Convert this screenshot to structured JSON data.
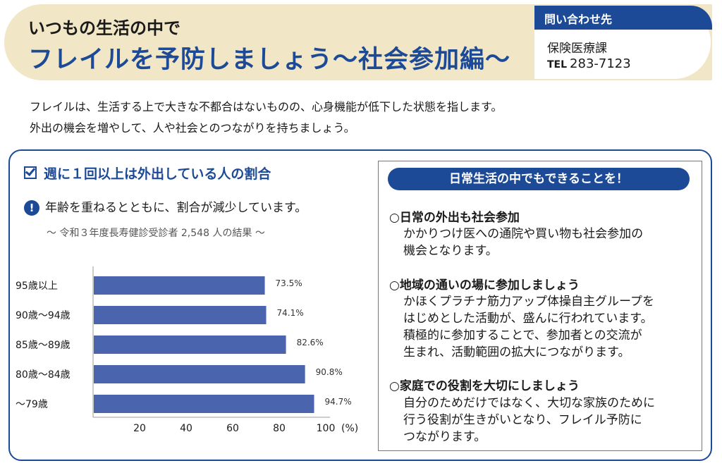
{
  "header": {
    "subtitle": "いつもの生活の中で",
    "title": "フレイルを予防しましょう～社会参加編～"
  },
  "contact": {
    "heading": "問い合わせ先",
    "department": "保険医療課",
    "tel_label": "TEL",
    "tel_number": "283-7123"
  },
  "intro": {
    "line1": "フレイルは、生活する上で大きな不都合はないものの、心身機能が低下した状態を指します。",
    "line2": "外出の機会を増やして、人や社会とのつながりを持ちましょう。"
  },
  "section": {
    "title": "週に１回以上は外出している人の割合",
    "note": "年齢を重ねるとともに、割合が減少しています。",
    "survey": "～ 令和３年度長寿健診受診者 2,548 人の結果 ～"
  },
  "chart_data": {
    "type": "bar",
    "orientation": "horizontal",
    "categories": [
      "95歳以上",
      "90歳～94歳",
      "85歳～89歳",
      "80歳～84歳",
      "～79歳"
    ],
    "values": [
      73.5,
      74.1,
      82.6,
      90.8,
      94.7
    ],
    "value_labels": [
      "73.5%",
      "74.1%",
      "82.6%",
      "90.8%",
      "94.7%"
    ],
    "xlim": [
      0,
      100
    ],
    "xticks": [
      20,
      40,
      60,
      80,
      100
    ],
    "xunit": "(%)",
    "bar_color": "#4a65ad"
  },
  "tips": {
    "heading": "日常生活の中でもできることを！",
    "items": [
      {
        "title": "○日常の外出も社会参加",
        "body": "かかりつけ医への通院や買い物も社会参加の\n機会となります。"
      },
      {
        "title": "○地域の通いの場に参加しましょう",
        "body": "かほくプラチナ筋力アップ体操自主グループを\nはじめとした活動が、盛んに行われています。\n積極的に参加することで、参加者との交流が\n生まれ、活動範囲の拡大につながります。"
      },
      {
        "title": "○家庭での役割を大切にしましょう",
        "body": "自分のためだけではなく、大切な家族のために\n行う役割が生きがいとなり、フレイル予防に\nつながります。"
      }
    ]
  },
  "colors": {
    "accent": "#1d4a96",
    "banner": "#f1e6c5"
  }
}
